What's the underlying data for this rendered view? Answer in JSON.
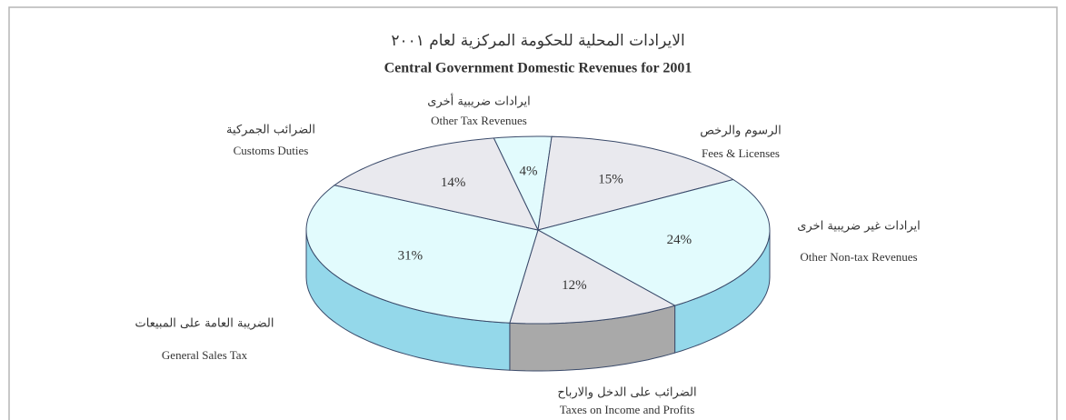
{
  "chart_data": {
    "type": "pie3d",
    "title": "الايرادات المحلية للحكومة المركزية لعام ٢٠٠١",
    "subtitle": "Central Government Domestic Revenues for 2001",
    "categories": [
      "Other Tax Revenues",
      "Fees & Licenses",
      "Other Non-tax Revenues",
      "Taxes on Income and Profits",
      "General Sales Tax",
      "Customs Duties"
    ],
    "categories_ar": [
      "ايرادات ضريبية أخرى",
      "الرسوم والرخص",
      "ايرادات غير ضريبية اخرى",
      "الضرائب على الدخل والارباح",
      "الضريبة العامة على المبيعات",
      "الضرائب الجمركية"
    ],
    "values": [
      4,
      15,
      24,
      12,
      31,
      14
    ],
    "value_labels": [
      "4%",
      "15%",
      "24%",
      "12%",
      "31%",
      "14%"
    ],
    "colors": [
      "#e2fbfd",
      "#e9e9ee",
      "#e2fbfd",
      "#e9e9ee",
      "#e2fbfd",
      "#e9e9ee"
    ],
    "side_colors": [
      "#94d8ea",
      "#94d8ea",
      "#94d8ea",
      "#a9a9a9",
      "#94d8ea",
      "#94d8ea"
    ]
  }
}
